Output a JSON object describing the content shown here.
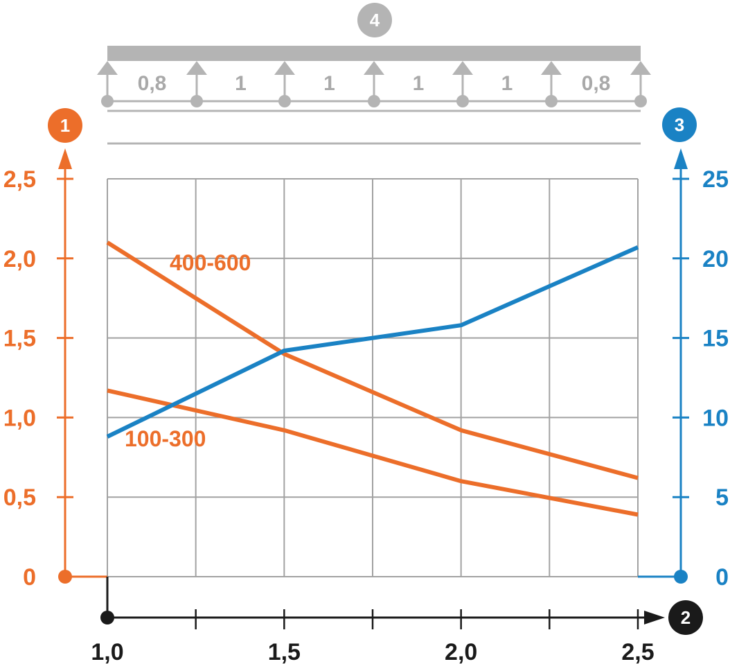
{
  "colors": {
    "left_axis": "#ec6e2a",
    "right_axis": "#1a82c4",
    "x_axis": "#1a1a1a",
    "grid": "#a2a2a2",
    "beam": "#b4b4b4",
    "badge_4": "#b4b4b4"
  },
  "badges": {
    "left_axis": "1",
    "x_axis": "2",
    "right_axis": "3",
    "beam": "4"
  },
  "beam": {
    "spans": [
      "0,8",
      "1",
      "1",
      "1",
      "1",
      "0,8"
    ]
  },
  "chart_data": {
    "type": "line",
    "x_ticks": [
      "1,0",
      "1,5",
      "2,0",
      "2,5"
    ],
    "y_left_ticks": [
      "0",
      "0,5",
      "1,0",
      "1,5",
      "2,0",
      "2,5"
    ],
    "y_right_ticks": [
      "0",
      "5",
      "10",
      "15",
      "20",
      "25"
    ],
    "xlim": [
      1.0,
      2.5
    ],
    "ylim_left": [
      0,
      2.5
    ],
    "ylim_right": [
      0,
      25
    ],
    "grid": true,
    "series": [
      {
        "name": "400-600",
        "axis": "left",
        "color": "#ec6e2a",
        "x": [
          1.0,
          1.5,
          2.0,
          2.5
        ],
        "y": [
          2.1,
          1.4,
          0.92,
          0.62
        ]
      },
      {
        "name": "100-300",
        "axis": "left",
        "color": "#ec6e2a",
        "x": [
          1.0,
          1.5,
          2.0,
          2.5
        ],
        "y": [
          1.17,
          0.92,
          0.6,
          0.39
        ]
      },
      {
        "axis": "right",
        "color": "#1a82c4",
        "x": [
          1.0,
          1.5,
          2.0,
          2.5
        ],
        "y": [
          8.8,
          14.2,
          15.8,
          20.7
        ]
      }
    ]
  }
}
